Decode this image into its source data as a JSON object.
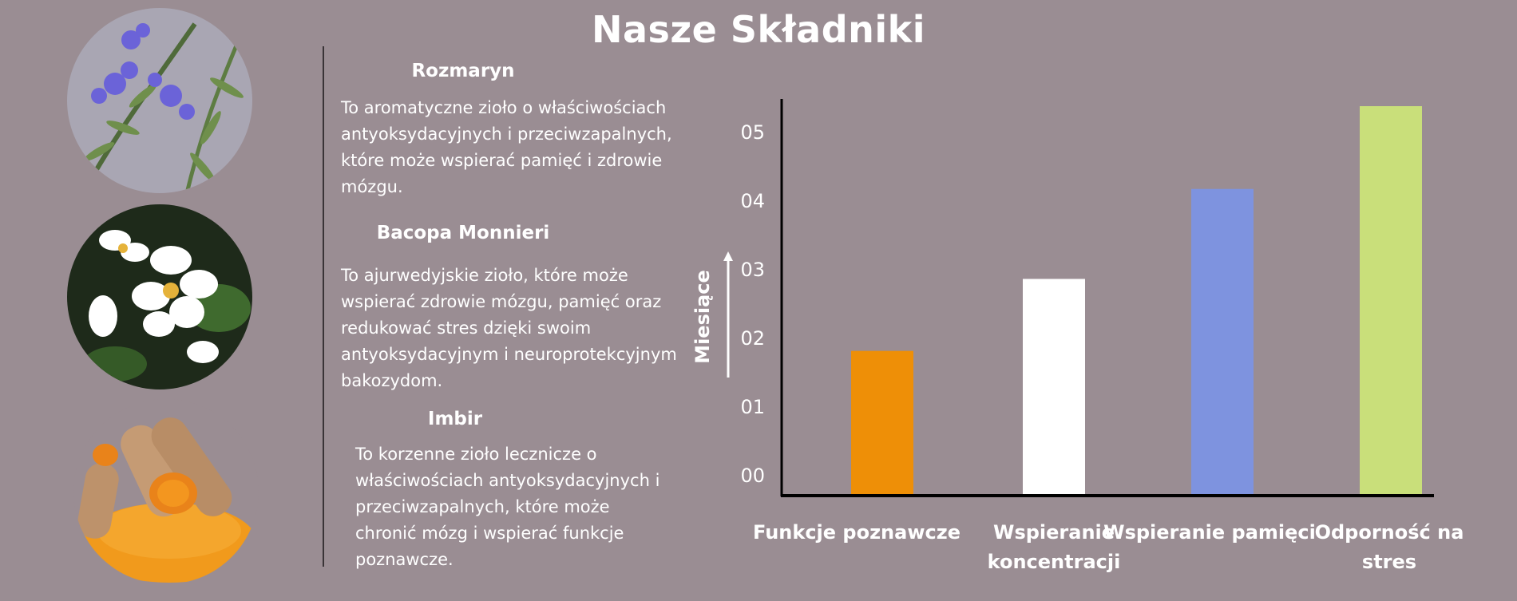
{
  "page": {
    "title": "Nasze Składniki"
  },
  "ingredients": [
    {
      "name": "Rozmaryn",
      "description_lines": [
        "To aromatyczne zioło o właściwościach",
        "antyoksydacyjnych i przeciwzapalnych,",
        "które może wspierać pamięć i zdrowie",
        "mózgu."
      ]
    },
    {
      "name": "Bacopa Monnieri",
      "description_lines": [
        "To ajurwedyjskie zioło, które może",
        "wspierać zdrowie mózgu, pamięć oraz",
        "redukować stres dzięki swoim",
        "antyoksydacyjnym i neuroprotekcyjnym",
        "bakozydom."
      ]
    },
    {
      "name": "Imbir",
      "description_lines": [
        "To korzenne zioło lecznicze o",
        "właściwościach antyoksydacyjnych i",
        "przeciwzapalnych, które może",
        "chronić mózg i wspierać funkcje",
        "poznawcze."
      ]
    }
  ],
  "chart_data": {
    "type": "bar",
    "title": "",
    "xlabel": "",
    "ylabel": "Miesiące",
    "ylim": [
      0,
      5.5
    ],
    "yticks": [
      "00",
      "01",
      "02",
      "03",
      "04",
      "05"
    ],
    "categories": [
      "Funkcje poznawcze",
      "Wspieranie koncentracji",
      "Wspieranie pamięci",
      "Odporność na stres"
    ],
    "category_label_lines": [
      [
        "Funkcje poznawcze"
      ],
      [
        "Wspieranie",
        "koncentracji"
      ],
      [
        "Wspieranie pamięci"
      ],
      [
        "Odporność na",
        "stres"
      ]
    ],
    "values": [
      2.0,
      3.0,
      4.25,
      5.4
    ],
    "colors": [
      "#ee8f07",
      "#ffffff",
      "#7e93df",
      "#c9df7a"
    ],
    "grid": false,
    "legend": "none"
  }
}
